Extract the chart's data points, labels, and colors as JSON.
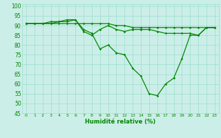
{
  "xlabel": "Humidité relative (%)",
  "bg_color": "#cceee8",
  "grid_color": "#99ddcc",
  "line_color": "#008800",
  "xlim": [
    -0.5,
    23.5
  ],
  "ylim": [
    45,
    101
  ],
  "yticks": [
    45,
    50,
    55,
    60,
    65,
    70,
    75,
    80,
    85,
    90,
    95,
    100
  ],
  "xticks": [
    0,
    1,
    2,
    3,
    4,
    5,
    6,
    7,
    8,
    9,
    10,
    11,
    12,
    13,
    14,
    15,
    16,
    17,
    18,
    19,
    20,
    21,
    22,
    23
  ],
  "series": [
    [
      91,
      91,
      91,
      91,
      91,
      91,
      91,
      91,
      91,
      91,
      91,
      90,
      90,
      89,
      89,
      89,
      89,
      89,
      89,
      89,
      89,
      89,
      89,
      89
    ],
    [
      91,
      91,
      91,
      91,
      92,
      93,
      93,
      88,
      86,
      78,
      80,
      76,
      75,
      68,
      64,
      55,
      54,
      60,
      63,
      73,
      85,
      85,
      89,
      89
    ],
    [
      91,
      91,
      91,
      92,
      92,
      92,
      93,
      87,
      85,
      88,
      90,
      88,
      87,
      88,
      88,
      88,
      87,
      86,
      86,
      86,
      86,
      85,
      89,
      89
    ]
  ]
}
